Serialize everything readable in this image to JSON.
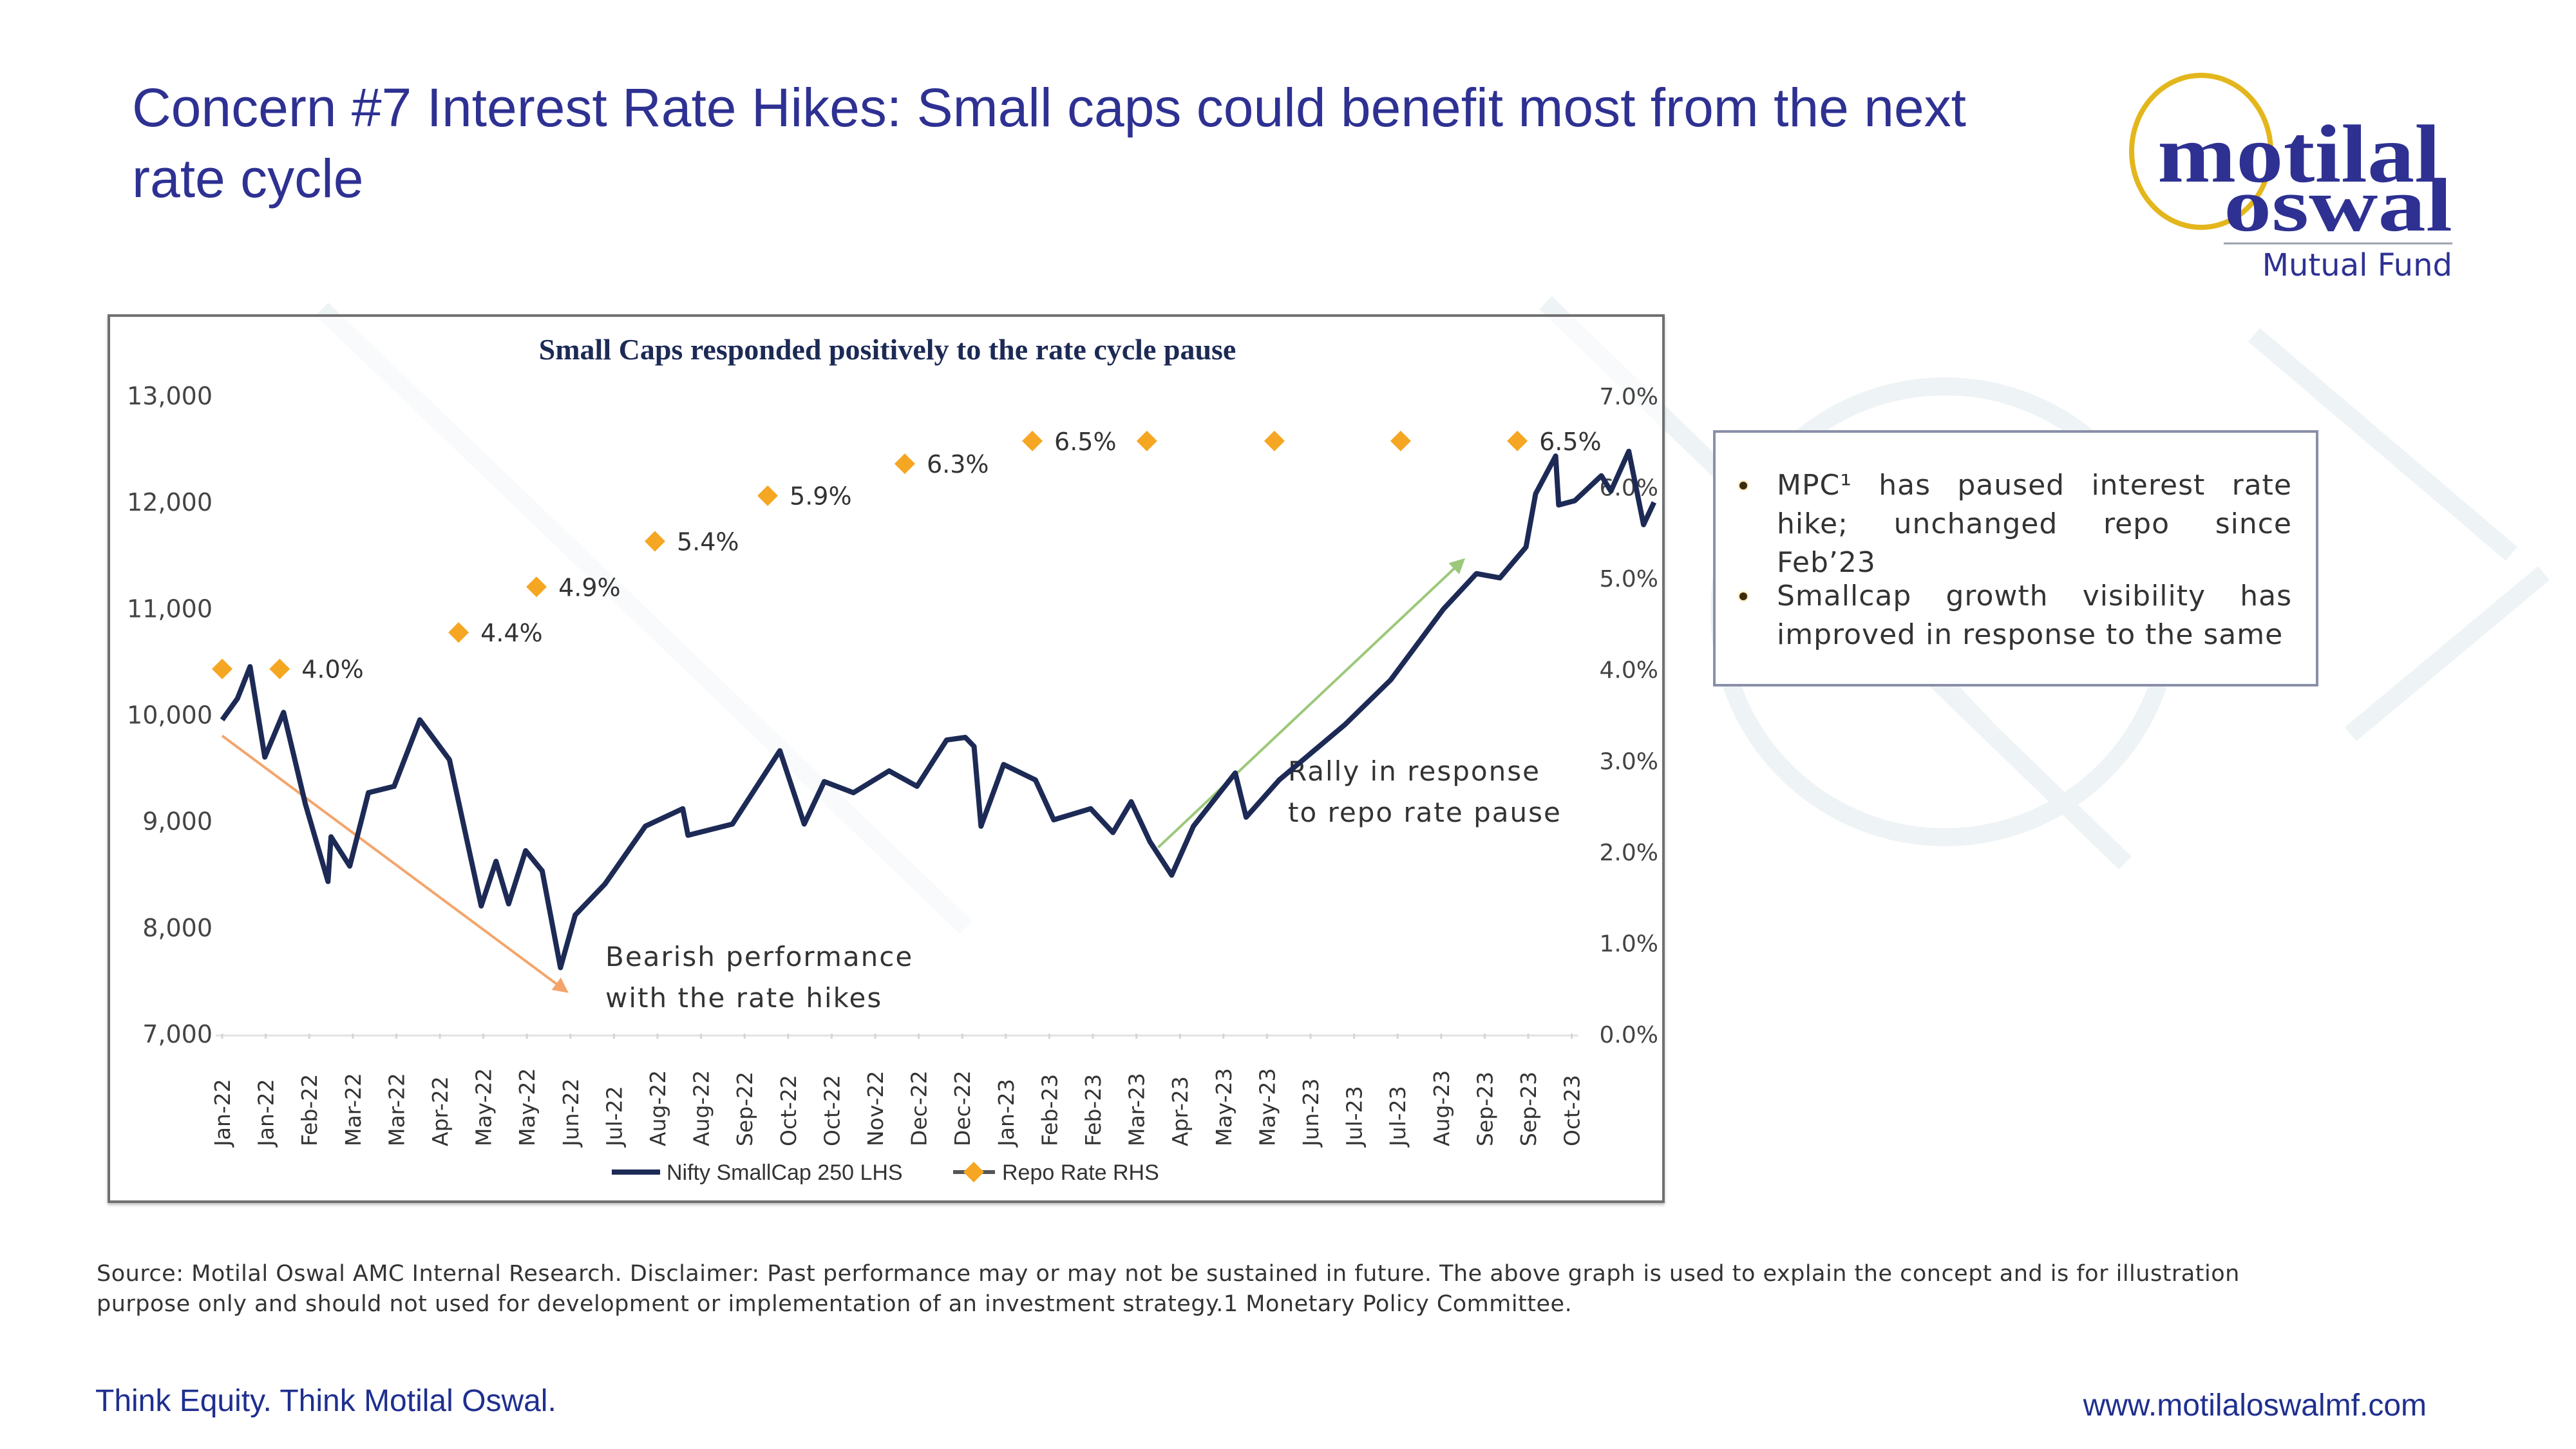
{
  "slide": {
    "title": "Concern #7 Interest Rate Hikes: Small caps could benefit most from the next rate cycle",
    "logo": {
      "line1": "motilal",
      "line2": "oswal",
      "line3": "Mutual Fund",
      "ring_color": "#e3b61c",
      "text_color": "#2e3192"
    },
    "notes": [
      "MPC¹ has paused interest rate hike; unchanged repo since Feb’23",
      "Smallcap growth visibility has improved in response to the same"
    ],
    "disclaimer": "Source: Motilal Oswal AMC Internal Research. Disclaimer: Past performance may or may not be sustained in future. The above graph is used to explain the concept and is for illustration purpose only and should not used for development or implementation of an investment strategy.1 Monetary Policy Committee.",
    "footer_left": "Think Equity. Think Motilal Oswal.",
    "footer_right": "www.motilaloswalmf.com"
  },
  "chart_data": {
    "type": "line",
    "title": "Small Caps responded positively to the rate cycle pause",
    "categories": [
      "Jan-22",
      "Jan-22",
      "Feb-22",
      "Mar-22",
      "Mar-22",
      "Apr-22",
      "May-22",
      "May-22",
      "Jun-22",
      "Jul-22",
      "Aug-22",
      "Aug-22",
      "Sep-22",
      "Oct-22",
      "Oct-22",
      "Nov-22",
      "Dec-22",
      "Dec-22",
      "Jan-23",
      "Feb-23",
      "Feb-23",
      "Mar-23",
      "Apr-23",
      "May-23",
      "May-23",
      "Jun-23",
      "Jul-23",
      "Jul-23",
      "Aug-23",
      "Sep-23",
      "Sep-23",
      "Oct-23"
    ],
    "y_left": {
      "label": "Nifty SmallCap 250",
      "min": 7000,
      "max": 13000,
      "ticks": [
        "7,000",
        "8,000",
        "9,000",
        "10,000",
        "11,000",
        "12,000",
        "13,000"
      ]
    },
    "y_right": {
      "label": "Repo Rate",
      "min": 0,
      "max": 7,
      "ticks": [
        "0.0%",
        "1.0%",
        "2.0%",
        "3.0%",
        "4.0%",
        "5.0%",
        "6.0%",
        "7.0%"
      ]
    },
    "series": [
      {
        "name": "Nifty SmallCap 250 LHS",
        "axis": "left",
        "color": "#1c2a55",
        "points": [
          [
            0,
            9950
          ],
          [
            0.35,
            10150
          ],
          [
            0.64,
            10450
          ],
          [
            0.98,
            9600
          ],
          [
            1.41,
            10020
          ],
          [
            1.91,
            9160
          ],
          [
            2.43,
            8430
          ],
          [
            2.5,
            8850
          ],
          [
            2.93,
            8575
          ],
          [
            3.36,
            9265
          ],
          [
            3.95,
            9325
          ],
          [
            4.54,
            9950
          ],
          [
            5.22,
            9575
          ],
          [
            5.95,
            8200
          ],
          [
            6.29,
            8620
          ],
          [
            6.58,
            8220
          ],
          [
            6.97,
            8720
          ],
          [
            7.35,
            8530
          ],
          [
            7.77,
            7620
          ],
          [
            8.11,
            8115
          ],
          [
            8.79,
            8405
          ],
          [
            9.72,
            8950
          ],
          [
            10.58,
            9115
          ],
          [
            10.7,
            8865
          ],
          [
            11.72,
            8970
          ],
          [
            12.81,
            9660
          ],
          [
            13.37,
            8970
          ],
          [
            13.83,
            9370
          ],
          [
            14.5,
            9265
          ],
          [
            15.32,
            9470
          ],
          [
            15.96,
            9325
          ],
          [
            16.64,
            9760
          ],
          [
            17.07,
            9785
          ],
          [
            17.27,
            9700
          ],
          [
            17.43,
            8950
          ],
          [
            17.95,
            9530
          ],
          [
            18.68,
            9385
          ],
          [
            19.1,
            9010
          ],
          [
            19.95,
            9115
          ],
          [
            20.46,
            8890
          ],
          [
            20.88,
            9180
          ],
          [
            21.31,
            8805
          ],
          [
            21.81,
            8490
          ],
          [
            22.31,
            8950
          ],
          [
            23.27,
            9450
          ],
          [
            23.52,
            9035
          ],
          [
            24.28,
            9385
          ],
          [
            25.79,
            9905
          ],
          [
            26.84,
            10325
          ],
          [
            28.05,
            10990
          ],
          [
            28.81,
            11325
          ],
          [
            29.35,
            11285
          ],
          [
            29.95,
            11575
          ],
          [
            30.17,
            12075
          ],
          [
            30.63,
            12430
          ],
          [
            30.7,
            11970
          ],
          [
            31.07,
            12010
          ],
          [
            31.68,
            12245
          ],
          [
            31.9,
            12100
          ],
          [
            32.31,
            12475
          ],
          [
            32.65,
            11785
          ],
          [
            32.89,
            11995
          ]
        ]
      },
      {
        "name": "Repo Rate RHS",
        "axis": "right",
        "color": "#f5a623",
        "points": [
          {
            "x": 0,
            "y": 4.0,
            "label": ""
          },
          {
            "x": 1.32,
            "y": 4.0,
            "label": "4.0%"
          },
          {
            "x": 5.43,
            "y": 4.4,
            "label": "4.4%"
          },
          {
            "x": 7.22,
            "y": 4.9,
            "label": "4.9%"
          },
          {
            "x": 9.94,
            "y": 5.4,
            "label": "5.4%"
          },
          {
            "x": 12.53,
            "y": 5.9,
            "label": "5.9%"
          },
          {
            "x": 15.68,
            "y": 6.25,
            "label": "6.3%"
          },
          {
            "x": 18.61,
            "y": 6.5,
            "label": "6.5%"
          },
          {
            "x": 21.24,
            "y": 6.5,
            "label": ""
          },
          {
            "x": 24.17,
            "y": 6.5,
            "label": ""
          },
          {
            "x": 27.07,
            "y": 6.5,
            "label": ""
          },
          {
            "x": 29.75,
            "y": 6.5,
            "label": "6.5%"
          }
        ]
      }
    ],
    "annotations": [
      {
        "text": [
          "Bearish performance",
          "with the rate hikes"
        ],
        "arrow_color": "#f4a46a",
        "arrow_from": [
          0,
          9800
        ],
        "arrow_to": [
          7.9,
          7400
        ]
      },
      {
        "text": [
          "Rally in response",
          "to repo rate pause"
        ],
        "arrow_color": "#9cc87a",
        "arrow_from": [
          21.5,
          8750
        ],
        "arrow_to": [
          28.5,
          11450
        ]
      }
    ],
    "legend": {
      "position": "bottom",
      "entries": [
        "Nifty SmallCap 250 LHS",
        "Repo Rate RHS"
      ]
    },
    "grid": false
  }
}
